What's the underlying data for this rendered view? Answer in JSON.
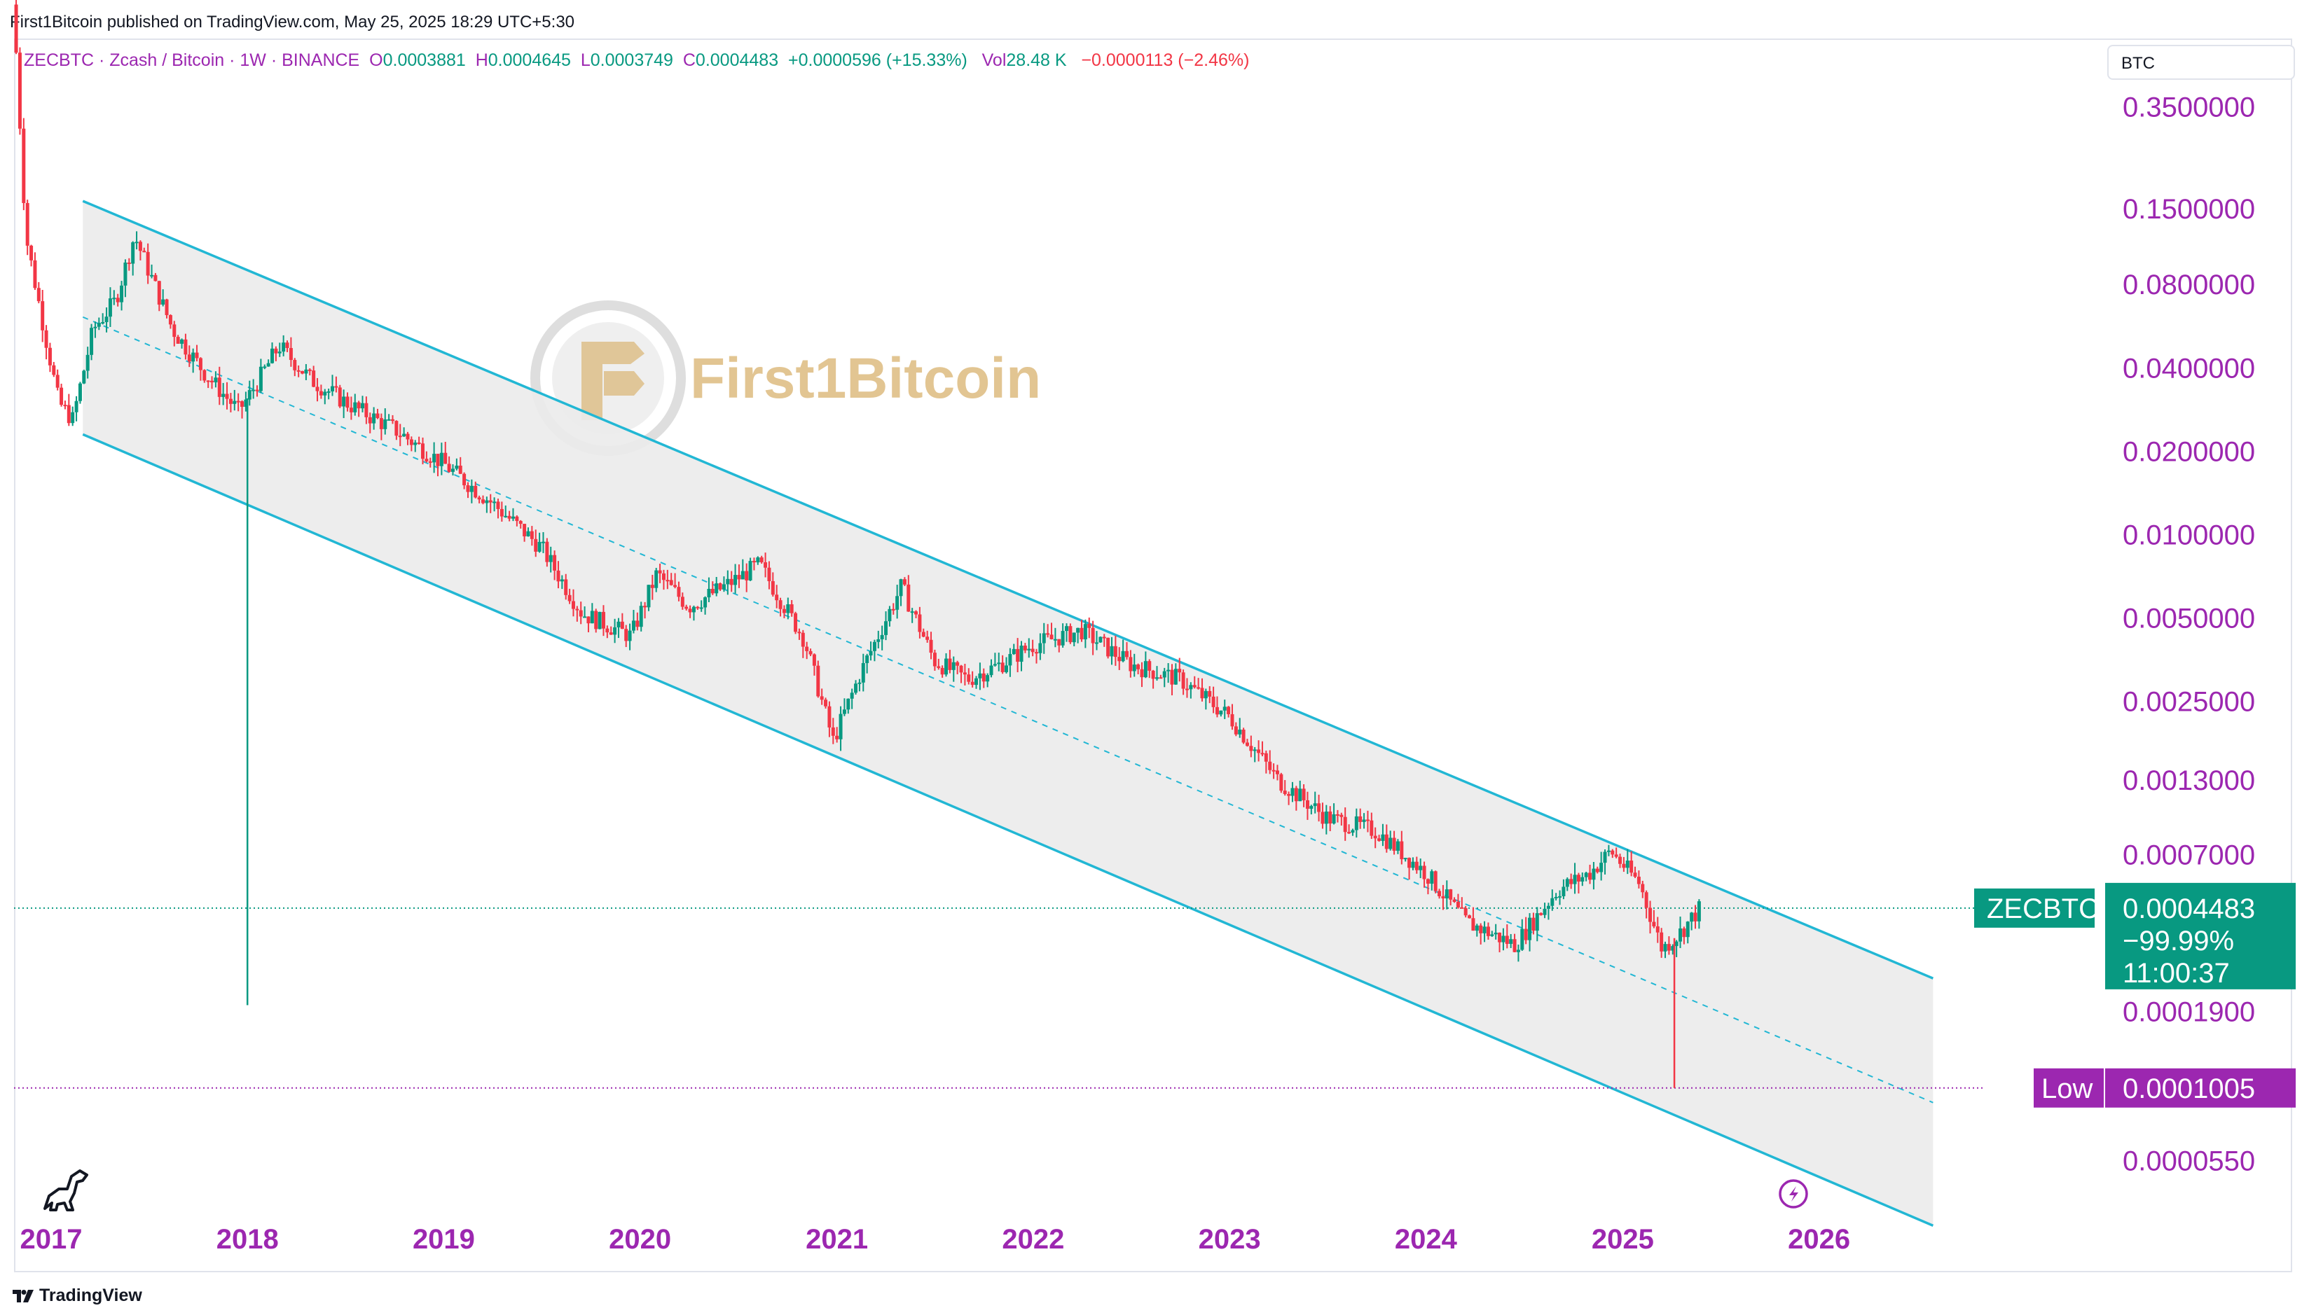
{
  "header": {
    "publish_line": "First1Bitcoin published on TradingView.com, May 25, 2025 18:29 UTC+5:30"
  },
  "legend": {
    "symbol": "ZECBTC · Zcash / Bitcoin · 1W · BINANCE",
    "o_label": "O",
    "o_value": "0.0003881",
    "h_label": "H",
    "h_value": "0.0004645",
    "l_label": "L",
    "l_value": "0.0003749",
    "c_label": "C",
    "c_value": "0.0004483",
    "change": "+0.0000596 (+15.33%)",
    "vol_label": "Vol",
    "vol_value": "28.48 K",
    "vol_change": "−0.0000113 (−2.46%)"
  },
  "currency_label": "BTC",
  "watermark": "First1Bitcoin",
  "footer_brand": "TradingView",
  "price_badge": {
    "symbol": "ZECBTC",
    "price": "0.0004483",
    "change_pct": "−99.99%",
    "countdown": "11:00:37"
  },
  "low_badge": {
    "label": "Low",
    "price": "0.0001005"
  },
  "colors": {
    "up": "#089981",
    "down": "#f23645",
    "channel": "#22b7d4",
    "channel_fill": "#ebebeb",
    "axis_text": "#9c27b0",
    "badge_green": "#089981",
    "badge_purple": "#9c27b0"
  },
  "chart_data": {
    "type": "candlestick",
    "symbol": "ZECBTC",
    "timeframe": "1W",
    "y_scale": "log",
    "ylim": [
      3.5e-05,
      0.6
    ],
    "xlim": [
      "2016-10-24",
      "2026-11-01"
    ],
    "y_ticks": [
      "0.3500000",
      "0.1500000",
      "0.0800000",
      "0.0400000",
      "0.0200000",
      "0.0100000",
      "0.0050000",
      "0.0025000",
      "0.0013000",
      "0.0007000",
      "0.0001900",
      "0.0000550"
    ],
    "x_ticks": [
      "2017",
      "2018",
      "2019",
      "2020",
      "2021",
      "2022",
      "2023",
      "2024",
      "2025",
      "2026"
    ],
    "last_price": 0.0004483,
    "low_price": 0.0001005,
    "price_path": [
      [
        "2016-10-28",
        0.55
      ],
      [
        "2016-11-15",
        0.12
      ],
      [
        "2016-12-15",
        0.06
      ],
      [
        "2017-01-15",
        0.03
      ],
      [
        "2017-02-10",
        0.026
      ],
      [
        "2017-03-20",
        0.055
      ],
      [
        "2017-05-01",
        0.07
      ],
      [
        "2017-06-05",
        0.12
      ],
      [
        "2017-07-01",
        0.09
      ],
      [
        "2017-08-15",
        0.055
      ],
      [
        "2017-10-15",
        0.038
      ],
      [
        "2017-12-15",
        0.028
      ],
      [
        "2018-01-01",
        0.031
      ],
      [
        "2018-03-01",
        0.048
      ],
      [
        "2018-05-01",
        0.036
      ],
      [
        "2018-07-15",
        0.029
      ],
      [
        "2018-10-01",
        0.024
      ],
      [
        "2019-01-01",
        0.018
      ],
      [
        "2019-04-01",
        0.013
      ],
      [
        "2019-07-01",
        0.009
      ],
      [
        "2019-09-15",
        0.0052
      ],
      [
        "2019-12-15",
        0.0043
      ],
      [
        "2020-02-01",
        0.0072
      ],
      [
        "2020-04-01",
        0.0055
      ],
      [
        "2020-06-01",
        0.0064
      ],
      [
        "2020-08-10",
        0.0078
      ],
      [
        "2020-11-01",
        0.0042
      ],
      [
        "2020-12-25",
        0.0018
      ],
      [
        "2021-02-15",
        0.0032
      ],
      [
        "2021-05-01",
        0.0065
      ],
      [
        "2021-07-01",
        0.0035
      ],
      [
        "2021-09-01",
        0.003
      ],
      [
        "2021-11-01",
        0.0034
      ],
      [
        "2022-01-01",
        0.004
      ],
      [
        "2022-04-01",
        0.0045
      ],
      [
        "2022-07-01",
        0.0034
      ],
      [
        "2022-10-01",
        0.003
      ],
      [
        "2023-01-01",
        0.0022
      ],
      [
        "2023-04-01",
        0.0013
      ],
      [
        "2023-07-01",
        0.00095
      ],
      [
        "2023-10-01",
        0.00085
      ],
      [
        "2024-01-01",
        0.0006
      ],
      [
        "2024-03-15",
        0.0004
      ],
      [
        "2024-06-15",
        0.00033
      ],
      [
        "2024-09-01",
        0.00052
      ],
      [
        "2024-11-01",
        0.0006
      ],
      [
        "2024-12-10",
        0.00072
      ],
      [
        "2025-02-01",
        0.00055
      ],
      [
        "2025-03-15",
        0.00032
      ],
      [
        "2025-04-15",
        0.00036
      ],
      [
        "2025-05-25",
        0.0004483
      ]
    ],
    "spikes": [
      {
        "date": "2018-01-01",
        "low": 0.0002,
        "dir": "up"
      },
      {
        "date": "2025-04-07",
        "low": 0.0001005,
        "dir": "down"
      }
    ],
    "channel": {
      "upper": [
        [
          "2017-03-01",
          0.16
        ],
        [
          "2026-08-01",
          0.00025
        ]
      ],
      "lower": [
        [
          "2017-03-01",
          0.023
        ],
        [
          "2026-08-01",
          3.2e-05
        ]
      ],
      "mid": [
        [
          "2017-03-01",
          0.061
        ],
        [
          "2026-08-01",
          8.9e-05
        ]
      ]
    }
  }
}
